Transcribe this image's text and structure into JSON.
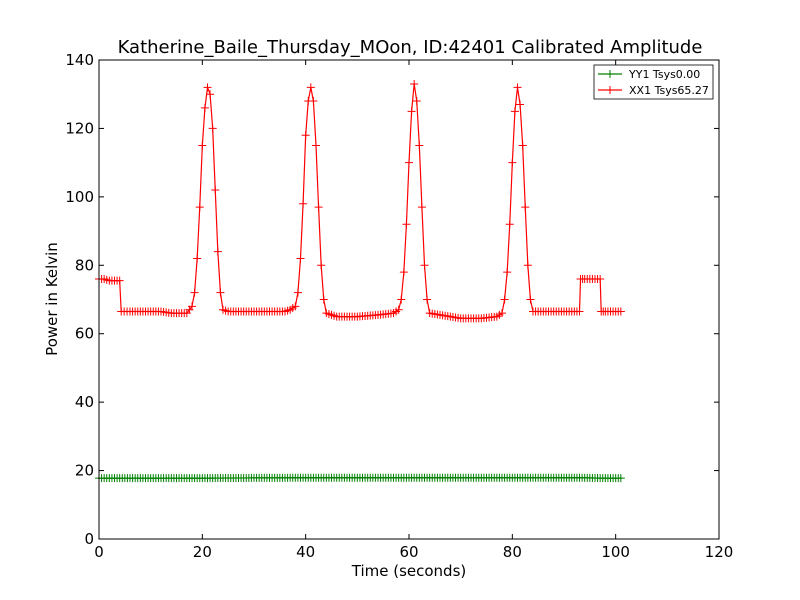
{
  "chart_data": {
    "type": "line",
    "title": "Katherine_Baile_Thursday_MOon, ID:42401 Calibrated Amplitude",
    "xlabel": "Time (seconds)",
    "ylabel": "Power in Kelvin",
    "xlim": [
      0,
      120
    ],
    "ylim": [
      0,
      140
    ],
    "xticks": [
      0,
      20,
      40,
      60,
      80,
      100,
      120
    ],
    "yticks": [
      0,
      20,
      40,
      60,
      80,
      100,
      120,
      140
    ],
    "grid": false,
    "legend_position": "top-right",
    "series": [
      {
        "name": "YY1 Tsys0.00",
        "color": "#008000",
        "marker": "+",
        "x": [
          0,
          4,
          9,
          20,
          40,
          60,
          80,
          93,
          97,
          101
        ],
        "y": [
          17.8,
          17.8,
          17.8,
          17.8,
          17.9,
          17.9,
          17.9,
          17.9,
          17.8,
          17.8
        ]
      },
      {
        "name": "XX1 Tsys65.27",
        "color": "#ff0000",
        "marker": "+",
        "x": [
          0,
          1,
          2,
          3,
          4,
          4.3,
          6,
          8,
          10,
          12,
          14,
          16,
          17,
          18,
          18.5,
          19,
          19.5,
          20,
          20.5,
          21,
          21.5,
          22,
          22.5,
          23,
          23.5,
          24,
          25,
          28,
          32,
          36,
          37,
          38,
          38.5,
          39,
          39.5,
          40,
          40.5,
          41,
          41.5,
          42,
          42.5,
          43,
          43.5,
          44,
          46,
          50,
          54,
          57,
          58,
          58.5,
          59,
          59.5,
          60,
          60.5,
          61,
          61.5,
          62,
          62.5,
          63,
          63.5,
          64,
          66,
          70,
          74,
          77,
          78,
          78.5,
          79,
          79.5,
          80,
          80.5,
          81,
          81.5,
          82,
          82.5,
          83,
          83.5,
          84,
          86,
          90,
          93,
          93.2,
          94,
          95,
          96,
          97,
          97.2,
          98,
          99,
          100,
          101
        ],
        "y": [
          76,
          76,
          75.5,
          75.5,
          75.5,
          66.5,
          66.5,
          66.5,
          66.5,
          66.5,
          66,
          66,
          66,
          68,
          72,
          82,
          97,
          115,
          126,
          132,
          130,
          120,
          102,
          84,
          72,
          67,
          66.5,
          66.5,
          66.5,
          66.5,
          67,
          68,
          72,
          82,
          98,
          118,
          128,
          132,
          128,
          115,
          97,
          80,
          70,
          66,
          65,
          65,
          65.5,
          66,
          67,
          70,
          78,
          92,
          110,
          125,
          133,
          128,
          115,
          97,
          80,
          70,
          66,
          65.5,
          64.5,
          64.5,
          65,
          66,
          70,
          78,
          92,
          110,
          125,
          132,
          127,
          115,
          97,
          80,
          70,
          66.5,
          66.5,
          66.5,
          66.5,
          76,
          76,
          76,
          76,
          76,
          66.5,
          66.5,
          66.5,
          66.5,
          66.5
        ]
      }
    ]
  }
}
